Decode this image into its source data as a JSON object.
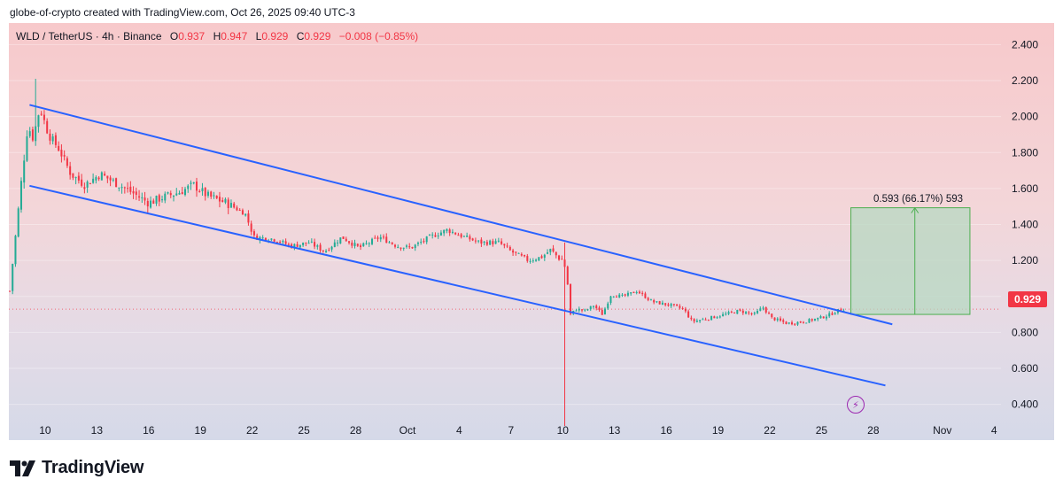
{
  "credit_line": "globe-of-crypto created with TradingView.com, Oct 26, 2025 09:40 UTC-3",
  "legend": {
    "symbol": "WLD / TetherUS · 4h · Binance",
    "o_label": "O",
    "o_value": "0.937",
    "h_label": "H",
    "h_value": "0.947",
    "l_label": "L",
    "l_value": "0.929",
    "c_label": "C",
    "c_value": "0.929",
    "change": "−0.008 (−0.85%)"
  },
  "measure_label": "0.593 (66.17%) 593",
  "last_price_tag": "0.929",
  "brand": "TradingView",
  "icons": {
    "replay": "replay-lightning-icon",
    "logo": "tradingview-logo-icon"
  },
  "colors": {
    "up": "#22ab94",
    "down": "#f23645",
    "channel": "#2962ff",
    "measure_fill": "#b7d8c2",
    "measure_line": "#4caf50"
  },
  "chart_data": {
    "type": "candlestick",
    "symbol": "WLD / TetherUS",
    "interval": "4h",
    "exchange": "Binance",
    "y_tick_labels": [
      "2.400",
      "2.200",
      "2.000",
      "1.800",
      "1.600",
      "1.400",
      "1.200",
      "1.000",
      "0.800",
      "0.600",
      "0.400"
    ],
    "y_ticks": [
      2.4,
      2.2,
      2.0,
      1.8,
      1.6,
      1.4,
      1.2,
      1.0,
      0.8,
      0.6,
      0.4
    ],
    "ylim": [
      0.28,
      2.52
    ],
    "x_ticks": [
      {
        "label": "10",
        "day": 10
      },
      {
        "label": "13",
        "day": 13
      },
      {
        "label": "16",
        "day": 16
      },
      {
        "label": "19",
        "day": 19
      },
      {
        "label": "22",
        "day": 22
      },
      {
        "label": "25",
        "day": 25
      },
      {
        "label": "28",
        "day": 28
      },
      {
        "label": "Oct",
        "day": 31
      },
      {
        "label": "4",
        "day": 34
      },
      {
        "label": "7",
        "day": 37
      },
      {
        "label": "10",
        "day": 40
      },
      {
        "label": "13",
        "day": 43
      },
      {
        "label": "16",
        "day": 46
      },
      {
        "label": "19",
        "day": 49
      },
      {
        "label": "22",
        "day": 52
      },
      {
        "label": "25",
        "day": 55
      },
      {
        "label": "28",
        "day": 58
      },
      {
        "label": "Nov",
        "day": 62
      },
      {
        "label": "4",
        "day": 65
      }
    ],
    "xlim": [
      7.9,
      65.4
    ],
    "close_anchors": [
      [
        7.95,
        1.03
      ],
      [
        8.3,
        1.35
      ],
      [
        8.6,
        1.62
      ],
      [
        9.0,
        1.95
      ],
      [
        9.3,
        1.88
      ],
      [
        9.7,
        2.05
      ],
      [
        10.2,
        1.9
      ],
      [
        10.8,
        1.82
      ],
      [
        11.5,
        1.68
      ],
      [
        12.3,
        1.62
      ],
      [
        13.2,
        1.68
      ],
      [
        14.3,
        1.62
      ],
      [
        15.0,
        1.58
      ],
      [
        16.0,
        1.52
      ],
      [
        16.8,
        1.55
      ],
      [
        17.8,
        1.58
      ],
      [
        18.6,
        1.62
      ],
      [
        19.4,
        1.56
      ],
      [
        20.5,
        1.52
      ],
      [
        21.6,
        1.46
      ],
      [
        22.1,
        1.33
      ],
      [
        23.2,
        1.32
      ],
      [
        24.3,
        1.28
      ],
      [
        25.3,
        1.3
      ],
      [
        26.2,
        1.25
      ],
      [
        27.2,
        1.33
      ],
      [
        28.2,
        1.27
      ],
      [
        29.4,
        1.33
      ],
      [
        30.4,
        1.28
      ],
      [
        31.2,
        1.27
      ],
      [
        32.3,
        1.33
      ],
      [
        33.3,
        1.37
      ],
      [
        34.3,
        1.33
      ],
      [
        35.2,
        1.3
      ],
      [
        36.3,
        1.3
      ],
      [
        37.0,
        1.25
      ],
      [
        38.0,
        1.2
      ],
      [
        38.8,
        1.22
      ],
      [
        39.3,
        1.26
      ],
      [
        39.8,
        1.21
      ],
      [
        40.05,
        1.2
      ],
      [
        40.25,
        1.1
      ],
      [
        40.45,
        0.9
      ],
      [
        40.8,
        0.93
      ],
      [
        41.3,
        0.92
      ],
      [
        41.8,
        0.95
      ],
      [
        42.3,
        0.9
      ],
      [
        42.8,
        1.01
      ],
      [
        43.5,
        1.0
      ],
      [
        44.3,
        1.03
      ],
      [
        45.2,
        0.97
      ],
      [
        46.3,
        0.95
      ],
      [
        47.0,
        0.93
      ],
      [
        47.5,
        0.86
      ],
      [
        48.5,
        0.88
      ],
      [
        49.4,
        0.9
      ],
      [
        50.2,
        0.92
      ],
      [
        51.1,
        0.9
      ],
      [
        51.6,
        0.94
      ],
      [
        52.1,
        0.88
      ],
      [
        53.0,
        0.85
      ],
      [
        54.0,
        0.86
      ],
      [
        54.9,
        0.88
      ],
      [
        55.5,
        0.9
      ],
      [
        55.9,
        0.92
      ],
      [
        56.3,
        0.929
      ]
    ],
    "spike_low": {
      "x": 40.1,
      "low": 0.28,
      "high": 1.3
    },
    "early_high": {
      "x": 9.4,
      "high": 2.21
    },
    "last_close": 0.929,
    "channel": {
      "upper": {
        "x1": 9.1,
        "y1": 2.065,
        "x2": 59.1,
        "y2": 0.845
      },
      "lower": {
        "x1": 9.1,
        "y1": 1.615,
        "x2": 58.7,
        "y2": 0.505
      }
    },
    "projection": {
      "x1": 56.7,
      "x2": 63.6,
      "y_bottom": 0.9,
      "y_top": 1.493,
      "delta": 0.593,
      "percent": 66.17,
      "ticks": 593
    },
    "last_price_line": 0.929
  }
}
